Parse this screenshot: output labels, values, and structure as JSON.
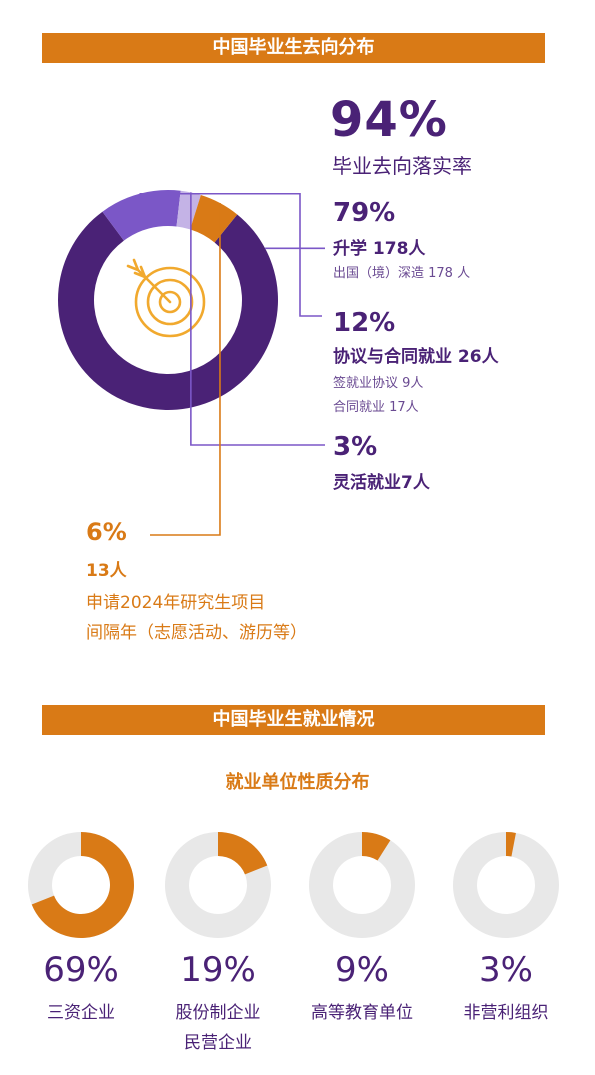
{
  "section1": {
    "title": "中国毕业生去向分布",
    "headline": {
      "value": "94%",
      "label": "毕业去向落实率"
    }
  },
  "chart_data": [
    {
      "type": "pie",
      "title": "中国毕业生去向分布",
      "slices": [
        {
          "key": "study",
          "pct": 79,
          "pct_label": "79%",
          "label": "升学 178人",
          "details": [
            "出国（境）深造 178 人"
          ],
          "color": "#4a2276"
        },
        {
          "key": "contract",
          "pct": 12,
          "pct_label": "12%",
          "label": "协议与合同就业 26人",
          "details": [
            "签就业协议 9人",
            "合同就业 17人"
          ],
          "color": "#7b57c7"
        },
        {
          "key": "flex",
          "pct": 3,
          "pct_label": "3%",
          "label": "灵活就业7人",
          "details": [],
          "color": "#c4b3e6"
        },
        {
          "key": "gap",
          "pct": 6,
          "pct_label": "6%",
          "label": "13人",
          "details": [
            "申请2024年研究生项目",
            "间隔年（志愿活动、游历等）"
          ],
          "color": "#d97a16"
        }
      ]
    },
    {
      "type": "pie",
      "title": "就业单位性质分布",
      "items": [
        {
          "pct": 69,
          "pct_label": "69%",
          "labels": [
            "三资企业"
          ]
        },
        {
          "pct": 19,
          "pct_label": "19%",
          "labels": [
            "股份制企业",
            "民营企业"
          ]
        },
        {
          "pct": 9,
          "pct_label": "9%",
          "labels": [
            "高等教育单位"
          ]
        },
        {
          "pct": 3,
          "pct_label": "3%",
          "labels": [
            "非营利组织"
          ]
        }
      ]
    }
  ],
  "section2": {
    "title": "中国毕业生就业情况",
    "subtitle": "就业单位性质分布"
  },
  "colors": {
    "orange": "#d97a16",
    "purple_dark": "#4a2276",
    "purple_mid": "#7b57c7",
    "purple_light": "#c4b3e6",
    "ring_gray": "#e8e8e8"
  },
  "icons": {
    "center": "target-arrow-icon"
  }
}
